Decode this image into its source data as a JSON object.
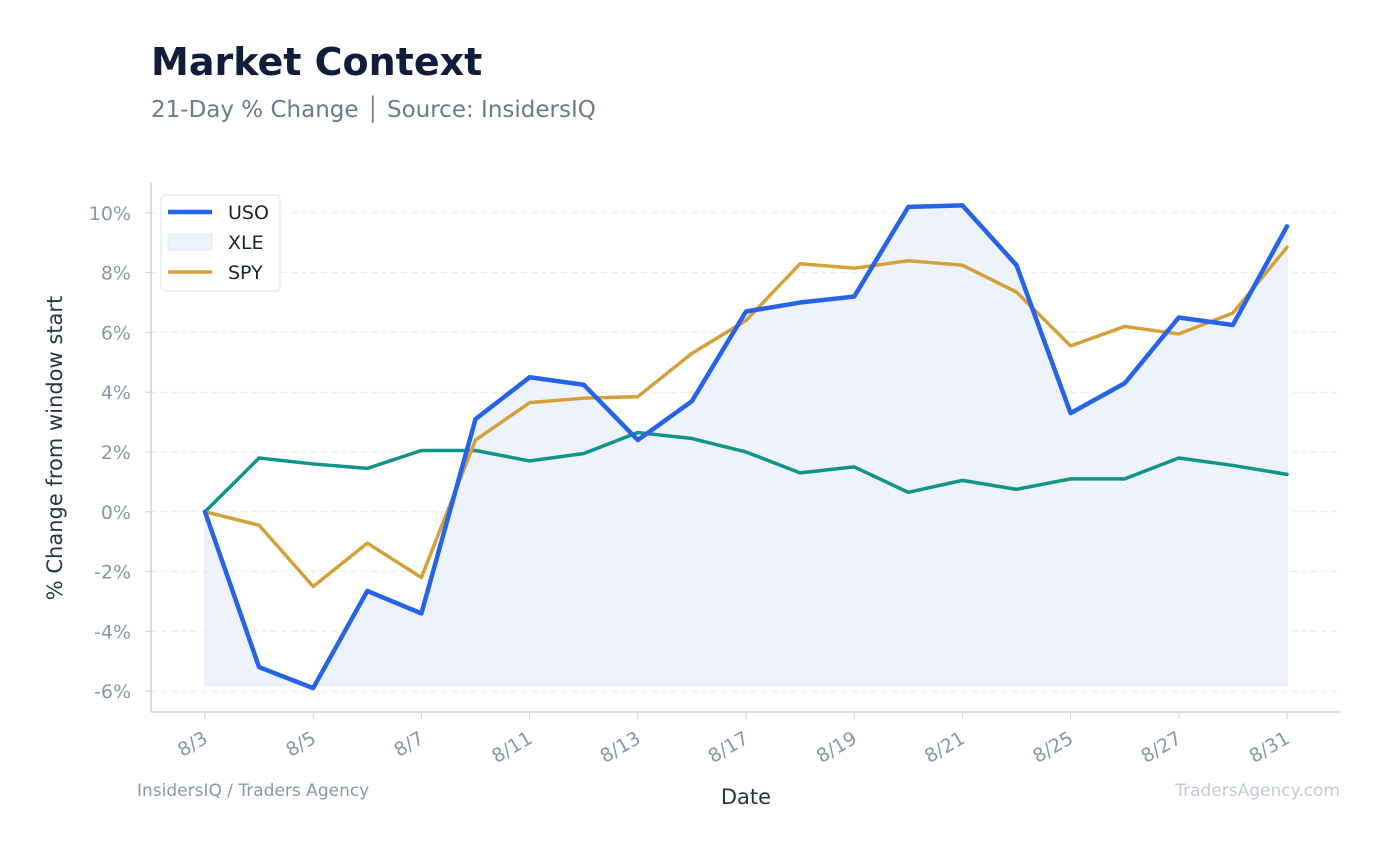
{
  "header": {
    "title": "Market Context",
    "subtitle": "21-Day % Change │ Source: InsidersIQ"
  },
  "footer": {
    "left": "InsidersIQ / Traders Agency",
    "right": "TradersAgency.com"
  },
  "colors": {
    "USO": "#2563eb",
    "XLE": "#0f9488",
    "SPY": "#d4a03a",
    "xle_fill": "#eef2fc"
  },
  "chart_data": {
    "type": "line",
    "title": "Market Context",
    "subtitle": "21-Day % Change │ Source: InsidersIQ",
    "xlabel": "Date",
    "ylabel": "% Change from window start",
    "ylim": [
      -6.7,
      11
    ],
    "y_ticks": [
      -6,
      -4,
      -2,
      0,
      2,
      4,
      6,
      8,
      10
    ],
    "y_tick_labels": [
      "-6%",
      "-4%",
      "-2%",
      "0%",
      "2%",
      "4%",
      "6%",
      "8%",
      "10%"
    ],
    "x": [
      "8/3",
      "8/4",
      "8/5",
      "8/6",
      "8/7",
      "8/10",
      "8/11",
      "8/12",
      "8/13",
      "8/14",
      "8/17",
      "8/18",
      "8/19",
      "8/20",
      "8/21",
      "8/24",
      "8/25",
      "8/26",
      "8/27",
      "8/28",
      "8/31"
    ],
    "x_tick_labels": [
      "8/3",
      "8/5",
      "8/7",
      "8/11",
      "8/13",
      "8/17",
      "8/19",
      "8/21",
      "8/25",
      "8/27",
      "8/31"
    ],
    "x_tick_positions": [
      0,
      2,
      4,
      6,
      8,
      10,
      12,
      14,
      16,
      18,
      20
    ],
    "grid": true,
    "legend_position": "top-left",
    "series": [
      {
        "name": "USO",
        "style": "line",
        "values": [
          0.0,
          -5.2,
          -5.9,
          -2.65,
          -3.4,
          3.1,
          4.5,
          4.25,
          2.4,
          3.7,
          6.7,
          7.0,
          7.2,
          10.2,
          10.25,
          8.25,
          3.3,
          4.3,
          6.5,
          6.25,
          9.55
        ]
      },
      {
        "name": "XLE",
        "style": "area",
        "values": [
          0.0,
          1.8,
          1.6,
          1.45,
          2.05,
          2.05,
          1.7,
          1.95,
          2.65,
          2.45,
          2.0,
          1.3,
          1.5,
          0.65,
          1.05,
          0.75,
          1.1,
          1.1,
          1.8,
          1.55,
          1.25
        ]
      },
      {
        "name": "SPY",
        "style": "line",
        "values": [
          0.0,
          -0.45,
          -2.5,
          -1.05,
          -2.2,
          2.4,
          3.65,
          3.8,
          3.85,
          5.3,
          6.4,
          8.3,
          8.15,
          8.4,
          8.25,
          7.35,
          5.55,
          6.2,
          5.95,
          6.65,
          8.85
        ]
      }
    ]
  }
}
